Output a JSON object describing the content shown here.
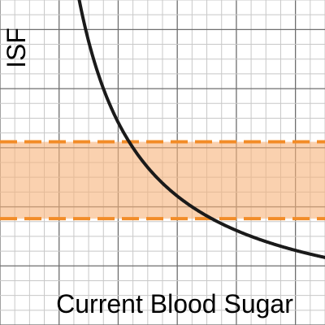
{
  "chart_data": {
    "type": "line",
    "xlabel": "Current Blood Sugar",
    "ylabel": "ISF",
    "xlim": [
      0,
      11
    ],
    "ylim": [
      0,
      11
    ],
    "grid": true,
    "legend": "none",
    "series": [
      {
        "function": "y = 24 / (x - 0.5)",
        "color": "#1a1a1a"
      }
    ],
    "band": {
      "y_low": 3.6,
      "y_high": 6.2,
      "fill_color": "#f7b27a",
      "fill_opacity": 0.6,
      "line_color": "#f28c28"
    },
    "colors": {
      "minor_grid": "#c8c8c8",
      "major_grid": "#6e6e6e"
    }
  }
}
